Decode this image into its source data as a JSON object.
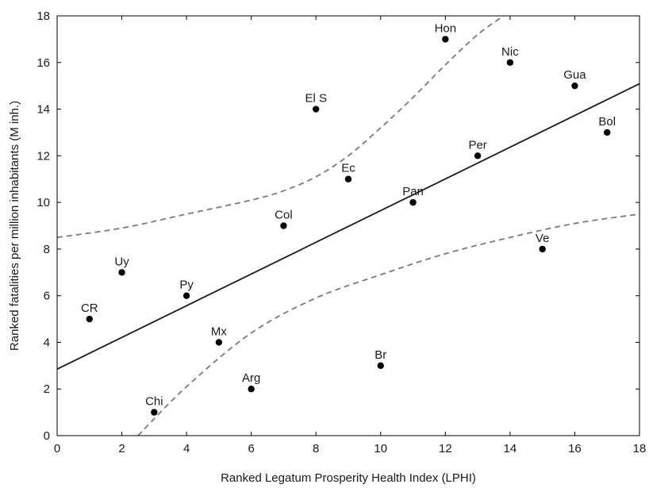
{
  "chart_data": {
    "type": "scatter",
    "title": "",
    "xlabel": "Ranked Legatum Prosperity Health Index (LPHI)",
    "ylabel": "Ranked fatalities per million inhabitants (M inh.)",
    "xlim": [
      0,
      18
    ],
    "ylim": [
      0,
      18
    ],
    "xticks": [
      0,
      2,
      4,
      6,
      8,
      10,
      12,
      14,
      16,
      18
    ],
    "yticks": [
      0,
      2,
      4,
      6,
      8,
      10,
      12,
      14,
      16,
      18
    ],
    "grid": false,
    "legend": "none",
    "points": [
      {
        "label": "CR",
        "x": 1,
        "y": 5
      },
      {
        "label": "Uy",
        "x": 2,
        "y": 7
      },
      {
        "label": "Chi",
        "x": 3,
        "y": 1
      },
      {
        "label": "Py",
        "x": 4,
        "y": 6
      },
      {
        "label": "Mx",
        "x": 5,
        "y": 4
      },
      {
        "label": "Arg",
        "x": 6,
        "y": 2
      },
      {
        "label": "Col",
        "x": 7,
        "y": 9
      },
      {
        "label": "El S",
        "x": 8,
        "y": 14
      },
      {
        "label": "Ec",
        "x": 9,
        "y": 11
      },
      {
        "label": "Br",
        "x": 10,
        "y": 3
      },
      {
        "label": "Pan",
        "x": 11,
        "y": 10
      },
      {
        "label": "Hon",
        "x": 12,
        "y": 17
      },
      {
        "label": "Per",
        "x": 13,
        "y": 12
      },
      {
        "label": "Nic",
        "x": 14,
        "y": 16
      },
      {
        "label": "Ve",
        "x": 15,
        "y": 8
      },
      {
        "label": "Gua",
        "x": 16,
        "y": 15
      },
      {
        "label": "Bol",
        "x": 17,
        "y": 13
      }
    ],
    "fit_line": {
      "intercept": 2.85,
      "slope": 0.68
    },
    "confidence_band": {
      "upper": [
        [
          0,
          8.5
        ],
        [
          2,
          8.9
        ],
        [
          4,
          9.5
        ],
        [
          6,
          10.1
        ],
        [
          7,
          10.5
        ],
        [
          8,
          11.1
        ],
        [
          9,
          12.0
        ],
        [
          10,
          13.2
        ],
        [
          11,
          14.5
        ],
        [
          12,
          15.9
        ],
        [
          13,
          17.2
        ],
        [
          13.8,
          18.0
        ]
      ],
      "lower": [
        [
          2.5,
          0
        ],
        [
          4,
          2.1
        ],
        [
          6,
          4.4
        ],
        [
          8,
          5.9
        ],
        [
          10,
          6.9
        ],
        [
          12,
          7.8
        ],
        [
          14,
          8.5
        ],
        [
          16,
          9.1
        ],
        [
          18,
          9.5
        ]
      ]
    },
    "colors": {
      "points": "#000000",
      "fit_line": "#1a1a1a",
      "band": "#7a7a7a",
      "axes": "#000000"
    }
  }
}
